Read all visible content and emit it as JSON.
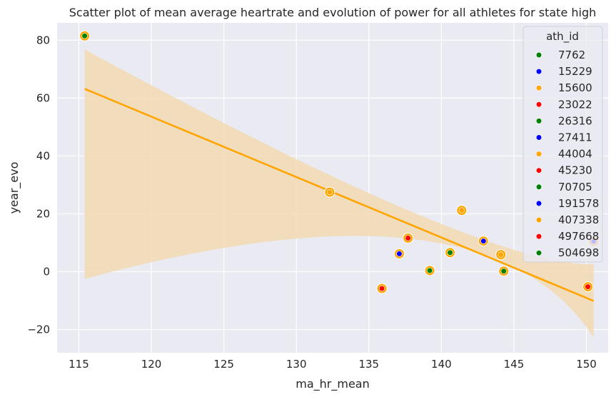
{
  "chart_data": {
    "type": "scatter",
    "title": "Scatter plot of mean average heartrate and evolution of power for all athletes for state high",
    "xlabel": "ma_hr_mean",
    "ylabel": "year_evo",
    "xlim": [
      113.5,
      151.5
    ],
    "ylim": [
      -28,
      86
    ],
    "x_ticks": [
      115,
      120,
      125,
      130,
      135,
      140,
      145,
      150
    ],
    "y_ticks": [
      -20,
      0,
      20,
      40,
      60,
      80
    ],
    "y_tick_labels": [
      "−20",
      "0",
      "20",
      "40",
      "60",
      "80"
    ],
    "grid": true,
    "legend_title": "ath_id",
    "legend_position": "top-right",
    "colors": {
      "background": "#eaeaf2",
      "grid": "#ffffff",
      "halo": "#ffa500",
      "regression_line": "#ffa500",
      "confidence_band": "#f2d9b3"
    },
    "series": [
      {
        "name": "7762",
        "color": "#008000",
        "points": [
          [
            115.4,
            81.5
          ]
        ]
      },
      {
        "name": "15229",
        "color": "#0000ff",
        "points": [
          [
            137.1,
            6.2
          ]
        ]
      },
      {
        "name": "15600",
        "color": "#ffa500",
        "points": [
          [
            132.3,
            27.5
          ],
          [
            141.4,
            21.2
          ],
          [
            144.1,
            5.9
          ]
        ]
      },
      {
        "name": "23022",
        "color": "#ff0000",
        "points": [
          [
            135.9,
            -5.8
          ]
        ]
      },
      {
        "name": "26316",
        "color": "#008000",
        "points": [
          [
            140.6,
            6.6
          ]
        ]
      },
      {
        "name": "27411",
        "color": "#0000ff",
        "points": [
          [
            142.9,
            10.6
          ]
        ]
      },
      {
        "name": "44004",
        "color": "#ffa500",
        "points": []
      },
      {
        "name": "45230",
        "color": "#ff0000",
        "points": [
          [
            137.7,
            11.6
          ]
        ]
      },
      {
        "name": "70705",
        "color": "#008000",
        "points": [
          [
            139.2,
            0.4
          ]
        ]
      },
      {
        "name": "191578",
        "color": "#0000ff",
        "points": [
          [
            150.5,
            10.5
          ]
        ]
      },
      {
        "name": "407338",
        "color": "#ffa500",
        "points": []
      },
      {
        "name": "497668",
        "color": "#ff0000",
        "points": [
          [
            150.1,
            -5.2
          ]
        ]
      },
      {
        "name": "504698",
        "color": "#008000",
        "points": [
          [
            144.3,
            0.2
          ]
        ]
      }
    ],
    "regression": {
      "x": [
        115.4,
        150.5
      ],
      "y": [
        63.2,
        -10.1
      ],
      "ci_upper": [
        76.8,
        2.6
      ],
      "ci_lower": [
        -2.5,
        -22.8
      ],
      "ci_center_x": 138.0,
      "ci_center_upper": 20.6,
      "ci_center_lower": 11.3
    }
  }
}
